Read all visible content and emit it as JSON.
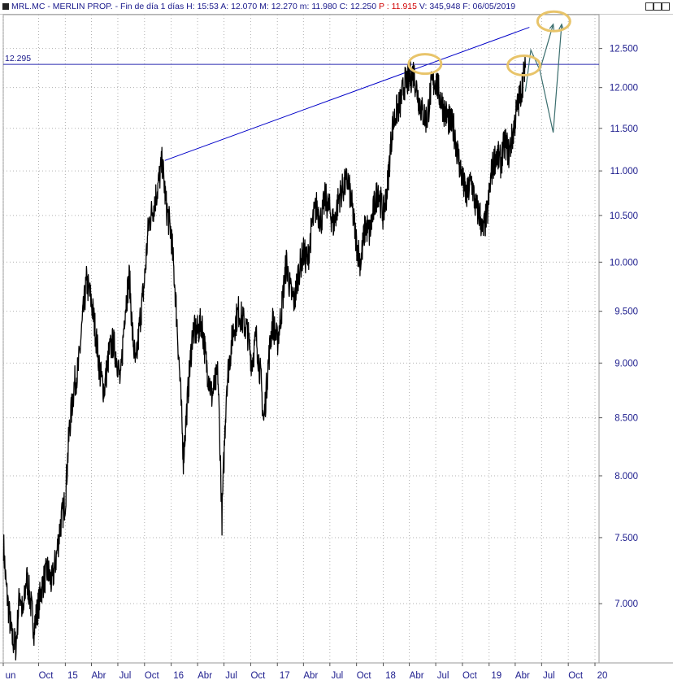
{
  "header": {
    "symbol": "MRL.MC",
    "name": "MERLIN PROP.",
    "period": "Fin de día 1 días",
    "H": "15:53",
    "A": "12.070",
    "M": "12.270",
    "m": "11.980",
    "C": "12.250",
    "P": "11.915",
    "V": "345,948",
    "F": "06/05/2019"
  },
  "chart_data": {
    "type": "line",
    "title": "",
    "xlabel": "",
    "ylabel": "",
    "y_scale": "log",
    "ylim": [
      6.58,
      12.95
    ],
    "y_ticks": [
      12.5,
      12.0,
      11.5,
      11.0,
      10.5,
      10.0,
      9.5,
      9.0,
      8.5,
      8.0,
      7.5,
      7.0
    ],
    "y_tick_labels": [
      "12.500",
      "12.000",
      "11.500",
      "11.000",
      "10.500",
      "10.000",
      "9.500",
      "9.000",
      "8.500",
      "8.000",
      "7.500",
      "7.000"
    ],
    "x_range": [
      "2014-06-01",
      "2020-01-15"
    ],
    "x_ticks": [
      {
        "date": "2014-06-01",
        "label": "un"
      },
      {
        "date": "2014-10-01",
        "label": "Oct"
      },
      {
        "date": "2015-01-01",
        "label": "15"
      },
      {
        "date": "2015-04-01",
        "label": "Abr"
      },
      {
        "date": "2015-07-01",
        "label": "Jul"
      },
      {
        "date": "2015-10-01",
        "label": "Oct"
      },
      {
        "date": "2016-01-01",
        "label": "16"
      },
      {
        "date": "2016-04-01",
        "label": "Abr"
      },
      {
        "date": "2016-07-01",
        "label": "Jul"
      },
      {
        "date": "2016-10-01",
        "label": "Oct"
      },
      {
        "date": "2017-01-01",
        "label": "17"
      },
      {
        "date": "2017-04-01",
        "label": "Abr"
      },
      {
        "date": "2017-07-01",
        "label": "Jul"
      },
      {
        "date": "2017-10-01",
        "label": "Oct"
      },
      {
        "date": "2018-01-01",
        "label": "18"
      },
      {
        "date": "2018-04-01",
        "label": "Abr"
      },
      {
        "date": "2018-07-01",
        "label": "Jul"
      },
      {
        "date": "2018-10-01",
        "label": "Oct"
      },
      {
        "date": "2019-01-01",
        "label": "19"
      },
      {
        "date": "2019-04-01",
        "label": "Abr"
      },
      {
        "date": "2019-07-01",
        "label": "Jul"
      },
      {
        "date": "2019-10-01",
        "label": "Oct"
      },
      {
        "date": "2020-01-01",
        "label": "20"
      }
    ],
    "grid": true,
    "series": [
      {
        "color": "#000000",
        "points": [
          [
            "2014-06-02",
            7.45
          ],
          [
            "2014-06-10",
            7.15
          ],
          [
            "2014-06-20",
            6.95
          ],
          [
            "2014-07-01",
            6.75
          ],
          [
            "2014-07-15",
            6.7
          ],
          [
            "2014-07-28",
            7.1
          ],
          [
            "2014-08-08",
            6.9
          ],
          [
            "2014-08-20",
            7.2
          ],
          [
            "2014-09-01",
            7.05
          ],
          [
            "2014-09-15",
            6.82
          ],
          [
            "2014-10-01",
            7.0
          ],
          [
            "2014-10-15",
            7.15
          ],
          [
            "2014-11-01",
            7.25
          ],
          [
            "2014-11-15",
            7.15
          ],
          [
            "2014-12-01",
            7.35
          ],
          [
            "2014-12-15",
            7.6
          ],
          [
            "2015-01-01",
            7.8
          ],
          [
            "2015-01-15",
            8.4
          ],
          [
            "2015-02-01",
            8.8
          ],
          [
            "2015-02-15",
            8.95
          ],
          [
            "2015-03-01",
            9.4
          ],
          [
            "2015-03-15",
            9.8
          ],
          [
            "2015-04-01",
            9.6
          ],
          [
            "2015-04-15",
            9.3
          ],
          [
            "2015-05-01",
            8.9
          ],
          [
            "2015-05-15",
            8.75
          ],
          [
            "2015-06-01",
            9.1
          ],
          [
            "2015-06-15",
            9.2
          ],
          [
            "2015-07-01",
            9.0
          ],
          [
            "2015-07-10",
            8.8
          ],
          [
            "2015-07-25",
            9.5
          ],
          [
            "2015-08-10",
            9.85
          ],
          [
            "2015-08-20",
            9.3
          ],
          [
            "2015-09-01",
            8.95
          ],
          [
            "2015-09-15",
            9.4
          ],
          [
            "2015-10-01",
            9.8
          ],
          [
            "2015-10-15",
            10.4
          ],
          [
            "2015-11-01",
            10.6
          ],
          [
            "2015-11-15",
            10.8
          ],
          [
            "2015-12-01",
            11.1
          ],
          [
            "2015-12-15",
            10.6
          ],
          [
            "2016-01-01",
            10.3
          ],
          [
            "2016-01-15",
            9.7
          ],
          [
            "2016-02-01",
            8.8
          ],
          [
            "2016-02-12",
            8.15
          ],
          [
            "2016-03-01",
            8.8
          ],
          [
            "2016-03-15",
            9.3
          ],
          [
            "2016-04-01",
            9.3
          ],
          [
            "2016-04-15",
            9.4
          ],
          [
            "2016-05-01",
            9.0
          ],
          [
            "2016-05-20",
            8.7
          ],
          [
            "2016-06-10",
            8.9
          ],
          [
            "2016-06-24",
            7.65
          ],
          [
            "2016-07-10",
            8.8
          ],
          [
            "2016-08-01",
            9.3
          ],
          [
            "2016-08-20",
            9.5
          ],
          [
            "2016-09-05",
            9.4
          ],
          [
            "2016-09-20",
            9.3
          ],
          [
            "2016-10-05",
            9.0
          ],
          [
            "2016-10-20",
            9.25
          ],
          [
            "2016-11-05",
            8.85
          ],
          [
            "2016-11-15",
            8.45
          ],
          [
            "2016-12-01",
            9.0
          ],
          [
            "2016-12-15",
            9.4
          ],
          [
            "2017-01-01",
            9.2
          ],
          [
            "2017-01-15",
            9.5
          ],
          [
            "2017-02-01",
            10.0
          ],
          [
            "2017-02-15",
            9.7
          ],
          [
            "2017-03-01",
            9.6
          ],
          [
            "2017-03-15",
            9.9
          ],
          [
            "2017-04-01",
            10.1
          ],
          [
            "2017-04-15",
            10.0
          ],
          [
            "2017-05-01",
            10.4
          ],
          [
            "2017-05-15",
            10.6
          ],
          [
            "2017-06-01",
            10.45
          ],
          [
            "2017-06-15",
            10.7
          ],
          [
            "2017-07-01",
            10.55
          ],
          [
            "2017-07-15",
            10.4
          ],
          [
            "2017-08-01",
            10.7
          ],
          [
            "2017-08-15",
            10.8
          ],
          [
            "2017-09-01",
            10.9
          ],
          [
            "2017-09-15",
            10.6
          ],
          [
            "2017-10-01",
            10.2
          ],
          [
            "2017-10-15",
            10.0
          ],
          [
            "2017-11-01",
            10.4
          ],
          [
            "2017-11-15",
            10.3
          ],
          [
            "2017-12-01",
            10.6
          ],
          [
            "2017-12-15",
            10.8
          ],
          [
            "2018-01-01",
            10.5
          ],
          [
            "2018-01-15",
            10.8
          ],
          [
            "2018-02-01",
            11.5
          ],
          [
            "2018-02-15",
            11.7
          ],
          [
            "2018-03-01",
            11.8
          ],
          [
            "2018-03-15",
            12.05
          ],
          [
            "2018-04-01",
            12.1
          ],
          [
            "2018-04-15",
            12.2
          ],
          [
            "2018-05-01",
            11.9
          ],
          [
            "2018-05-15",
            11.7
          ],
          [
            "2018-06-01",
            11.6
          ],
          [
            "2018-06-15",
            12.0
          ],
          [
            "2018-07-01",
            12.1
          ],
          [
            "2018-07-15",
            11.9
          ],
          [
            "2018-08-01",
            11.7
          ],
          [
            "2018-08-15",
            11.6
          ],
          [
            "2018-09-01",
            11.5
          ],
          [
            "2018-09-15",
            11.2
          ],
          [
            "2018-10-01",
            10.9
          ],
          [
            "2018-10-15",
            10.7
          ],
          [
            "2018-11-01",
            10.9
          ],
          [
            "2018-11-15",
            10.6
          ],
          [
            "2018-12-01",
            10.5
          ],
          [
            "2018-12-10",
            10.3
          ],
          [
            "2018-12-27",
            10.55
          ],
          [
            "2019-01-10",
            11.0
          ],
          [
            "2019-01-25",
            11.2
          ],
          [
            "2019-02-10",
            11.1
          ],
          [
            "2019-02-25",
            11.35
          ],
          [
            "2019-03-10",
            11.2
          ],
          [
            "2019-03-25",
            11.45
          ],
          [
            "2019-04-05",
            11.7
          ],
          [
            "2019-04-15",
            11.85
          ],
          [
            "2019-04-25",
            12.05
          ],
          [
            "2019-05-06",
            12.25
          ]
        ]
      }
    ],
    "resistance_level": {
      "value": 12.295,
      "label": "12.295"
    },
    "trendline": {
      "color": "#0000c8",
      "points": [
        [
          "2015-12-10",
          11.12
        ],
        [
          "2019-05-20",
          12.78
        ]
      ]
    },
    "projection": {
      "color": "#3b6e6e",
      "points": [
        [
          "2019-05-06",
          11.95
        ],
        [
          "2019-05-25",
          12.48
        ],
        [
          "2019-06-25",
          12.22
        ],
        [
          "2019-08-10",
          11.45
        ],
        [
          "2019-09-08",
          12.82
        ]
      ],
      "alt_points": [
        [
          "2019-06-25",
          12.22
        ],
        [
          "2019-08-10",
          12.82
        ]
      ]
    },
    "ellipses": [
      {
        "date": "2018-05-25",
        "value": 12.3
      },
      {
        "date": "2019-05-01",
        "value": 12.28
      },
      {
        "date": "2019-08-12",
        "value": 12.86
      }
    ]
  }
}
